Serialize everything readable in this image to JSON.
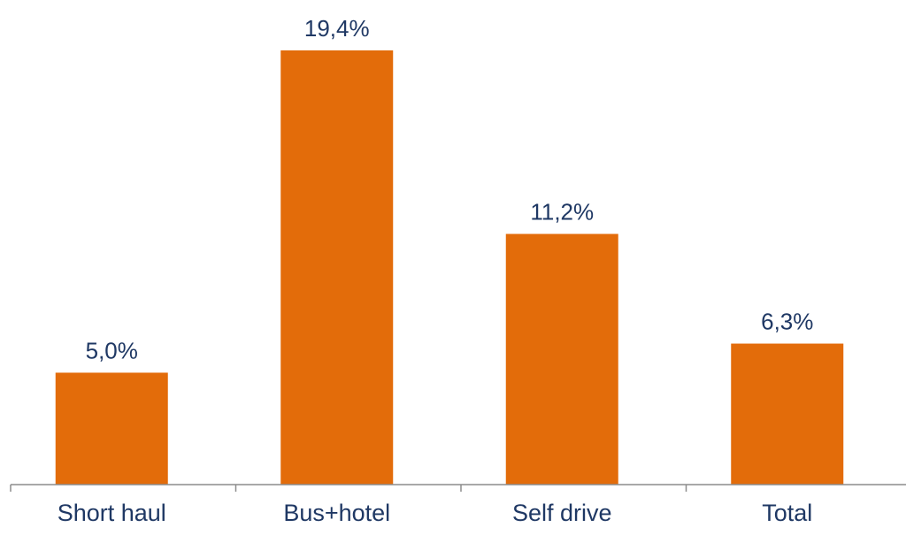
{
  "chart_data": {
    "type": "bar",
    "categories": [
      "Short haul",
      "Bus+hotel",
      "Self drive",
      "Total"
    ],
    "values": [
      5.0,
      19.4,
      11.2,
      6.3
    ],
    "data_labels": [
      "5,0%",
      "19,4%",
      "11,2%",
      "6,3%"
    ],
    "ylim": [
      0,
      20
    ],
    "grid": false,
    "legend": "none",
    "bar_color": "#E36C0A",
    "label_color": "#1F3864",
    "axis_color": "#8C8C8C"
  }
}
